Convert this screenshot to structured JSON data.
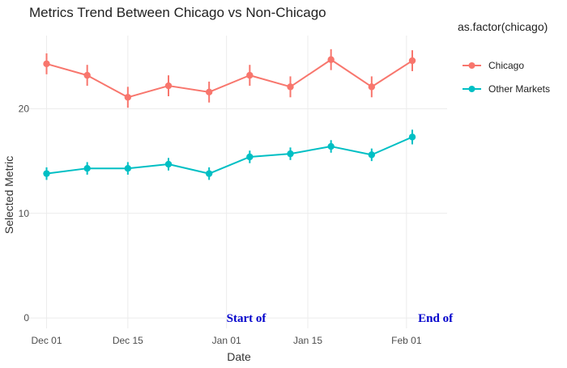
{
  "chart_data": {
    "type": "line",
    "title": "Metrics Trend Between Chicago vs Non-Chicago",
    "xlabel": "Date",
    "ylabel": "Selected Metric",
    "x": [
      "2020-12-01",
      "2020-12-08",
      "2020-12-15",
      "2020-12-22",
      "2020-12-29",
      "2021-01-05",
      "2021-01-12",
      "2021-01-19",
      "2021-01-26",
      "2021-02-02"
    ],
    "xlim": [
      "2020-11-28",
      "2021-02-08"
    ],
    "ylim": [
      -1,
      27
    ],
    "x_ticks": [
      {
        "date": "2020-12-01",
        "label": "Dec 01"
      },
      {
        "date": "2020-12-15",
        "label": "Dec 15"
      },
      {
        "date": "2021-01-01",
        "label": "Jan 01"
      },
      {
        "date": "2021-01-15",
        "label": "Jan 15"
      },
      {
        "date": "2021-02-01",
        "label": "Feb 01"
      }
    ],
    "y_ticks": [
      0,
      10,
      20
    ],
    "grid": true,
    "legend": {
      "title": "as.factor(chicago)",
      "placement": "right"
    },
    "series": [
      {
        "name": "Chicago",
        "color": "#f8766d",
        "values": [
          24.3,
          23.2,
          21.1,
          22.2,
          21.6,
          23.2,
          22.1,
          24.7,
          22.1,
          24.6
        ],
        "error_bars": [
          [
            23.3,
            25.3
          ],
          [
            22.2,
            24.2
          ],
          [
            20.1,
            22.1
          ],
          [
            21.2,
            23.2
          ],
          [
            20.6,
            22.6
          ],
          [
            22.2,
            24.2
          ],
          [
            21.1,
            23.1
          ],
          [
            23.7,
            25.7
          ],
          [
            21.1,
            23.1
          ],
          [
            23.6,
            25.6
          ]
        ]
      },
      {
        "name": "Other Markets",
        "color": "#00bfc4",
        "values": [
          13.8,
          14.3,
          14.3,
          14.7,
          13.8,
          15.4,
          15.7,
          16.4,
          15.6,
          17.3
        ],
        "error_bars": [
          [
            13.2,
            14.4
          ],
          [
            13.7,
            14.9
          ],
          [
            13.7,
            14.9
          ],
          [
            14.1,
            15.3
          ],
          [
            13.2,
            14.4
          ],
          [
            14.8,
            16.0
          ],
          [
            15.1,
            16.3
          ],
          [
            15.8,
            17.0
          ],
          [
            15.0,
            16.2
          ],
          [
            16.6,
            18.0
          ]
        ]
      }
    ],
    "annotations": [
      {
        "text": "Start of",
        "x": "2021-01-01",
        "y": 0
      },
      {
        "text": "End of",
        "x": "2021-02-03",
        "y": 0
      }
    ]
  }
}
